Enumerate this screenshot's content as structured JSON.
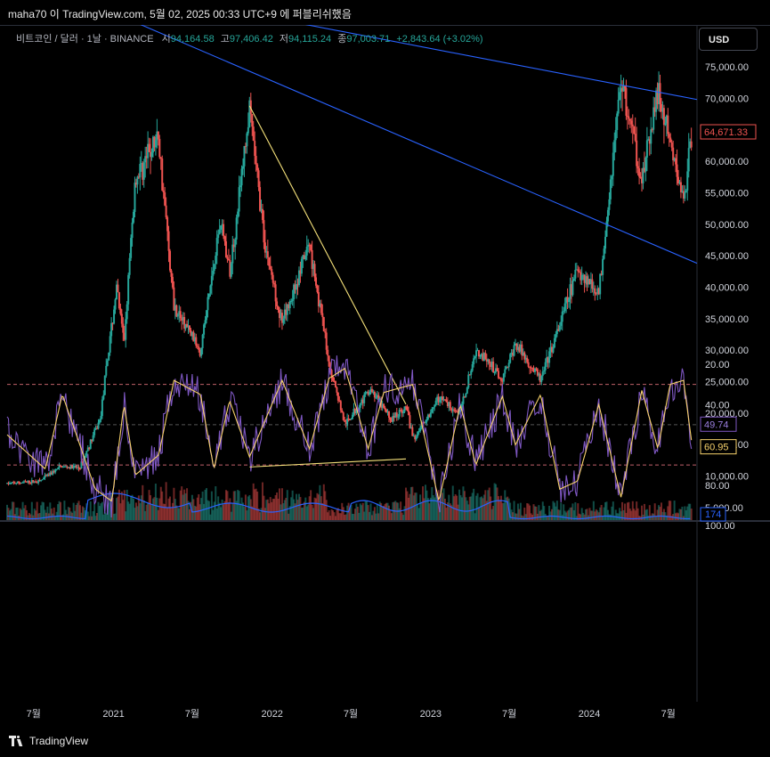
{
  "header": {
    "publish_text": "maha70 이 TradingView.com, 5월 02, 2025 00:33 UTC+9 에 퍼블리쉬했음"
  },
  "legend": {
    "symbol": "비트코인 / 달러 · 1날 · BINANCE",
    "open_label": "시",
    "open": "94,164.58",
    "high_label": "고",
    "high": "97,406.42",
    "low_label": "저",
    "low": "94,115.24",
    "close_label": "종",
    "close": "97,003.71",
    "change": "+2,843.64 (+3.02%)"
  },
  "currency_button": "USD",
  "footer": {
    "brand": "TradingView"
  },
  "colors": {
    "up": "#26a69a",
    "down": "#ef5350",
    "trend": "#2962ff",
    "fib_line": "#f5e17a",
    "rsi": "#7e57c2",
    "rsi_ma": "#f7d26b",
    "volume_ma": "#2962ff"
  },
  "chart_data": [
    {
      "type": "line",
      "title": "",
      "x_tick_labels": [
        "7월",
        "2021",
        "7월",
        "2022",
        "7월",
        "2023",
        "7월",
        "2024",
        "7월"
      ],
      "y_tick_labels": [
        "5,000.00",
        "10,000.00",
        "15,000.00",
        "20,000.00",
        "25,000.00",
        "30,000.00",
        "35,000.00",
        "40,000.00",
        "45,000.00",
        "50,000.00",
        "55,000.00",
        "60,000.00",
        "65,000.00",
        "70,000.00",
        "75,000.00"
      ],
      "ylim": [
        0,
        78000
      ],
      "current_price_label": "64,671.33",
      "volume_label": "174",
      "price_path": [
        [
          "2020-05-01",
          8800
        ],
        [
          "2020-07-15",
          9200
        ],
        [
          "2020-09-01",
          11500
        ],
        [
          "2020-10-15",
          11300
        ],
        [
          "2020-12-01",
          19000
        ],
        [
          "2021-01-08",
          40000
        ],
        [
          "2021-01-25",
          31000
        ],
        [
          "2021-02-20",
          57000
        ],
        [
          "2021-04-14",
          64000
        ],
        [
          "2021-05-20",
          37000
        ],
        [
          "2021-07-20",
          30000
        ],
        [
          "2021-09-05",
          51000
        ],
        [
          "2021-09-25",
          42000
        ],
        [
          "2021-11-10",
          68000
        ],
        [
          "2021-12-15",
          47000
        ],
        [
          "2022-01-24",
          34000
        ],
        [
          "2022-03-28",
          47000
        ],
        [
          "2022-05-12",
          28000
        ],
        [
          "2022-06-18",
          18000
        ],
        [
          "2022-08-15",
          24000
        ],
        [
          "2022-10-01",
          19000
        ],
        [
          "2022-11-05",
          21000
        ],
        [
          "2022-11-21",
          15800
        ],
        [
          "2023-01-20",
          22500
        ],
        [
          "2023-03-10",
          20000
        ],
        [
          "2023-04-15",
          30000
        ],
        [
          "2023-06-15",
          25500
        ],
        [
          "2023-07-15",
          31000
        ],
        [
          "2023-09-11",
          25200
        ],
        [
          "2023-10-25",
          34000
        ],
        [
          "2023-12-05",
          43000
        ],
        [
          "2024-01-23",
          39000
        ],
        [
          "2024-03-14",
          73000
        ],
        [
          "2024-05-01",
          57000
        ],
        [
          "2024-06-07",
          71000
        ],
        [
          "2024-08-05",
          53500
        ],
        [
          "2024-08-25",
          64671
        ]
      ],
      "trend_lines": [
        {
          "name": "upper-trendline",
          "from": [
            "2020-05-01",
            90800
          ],
          "to": [
            "2024-09-05",
            69800
          ]
        },
        {
          "name": "lower-trendline",
          "from": [
            "2020-05-01",
            90800
          ],
          "to": [
            "2024-09-05",
            43800
          ]
        },
        {
          "name": "fib-line",
          "from": [
            "2021-11-10",
            68800
          ],
          "to": [
            "2022-11-05",
            21400
          ]
        }
      ]
    },
    {
      "type": "line",
      "title": "",
      "y_tick_labels": [
        "20.00",
        "40.00",
        "60.00",
        "80.00",
        "100.00"
      ],
      "ylim": [
        13,
        100
      ],
      "band": [
        30,
        70
      ],
      "midline": 50,
      "rsi_label": "60.95",
      "rsi_ma_label": "49.74",
      "rsi_path": [
        [
          "2020-05-01",
          55
        ],
        [
          "2020-07-28",
          72
        ],
        [
          "2020-09-05",
          35
        ],
        [
          "2020-11-20",
          82
        ],
        [
          "2020-12-28",
          88
        ],
        [
          "2021-01-25",
          40
        ],
        [
          "2021-02-20",
          75
        ],
        [
          "2021-04-15",
          65
        ],
        [
          "2021-05-20",
          28
        ],
        [
          "2021-07-20",
          35
        ],
        [
          "2021-08-20",
          72
        ],
        [
          "2021-09-25",
          38
        ],
        [
          "2021-11-10",
          66
        ],
        [
          "2022-01-24",
          28
        ],
        [
          "2022-03-28",
          62
        ],
        [
          "2022-05-12",
          27
        ],
        [
          "2022-06-18",
          22
        ],
        [
          "2022-08-10",
          62
        ],
        [
          "2022-09-15",
          34
        ],
        [
          "2022-11-21",
          30
        ],
        [
          "2023-01-20",
          88
        ],
        [
          "2023-03-10",
          40
        ],
        [
          "2023-04-15",
          70
        ],
        [
          "2023-06-15",
          36
        ],
        [
          "2023-07-15",
          60
        ],
        [
          "2023-09-11",
          35
        ],
        [
          "2023-10-25",
          82
        ],
        [
          "2023-12-05",
          78
        ],
        [
          "2024-01-23",
          40
        ],
        [
          "2024-03-14",
          86
        ],
        [
          "2024-05-01",
          33
        ],
        [
          "2024-06-07",
          62
        ],
        [
          "2024-07-05",
          30
        ],
        [
          "2024-08-05",
          28
        ],
        [
          "2024-08-25",
          60.95
        ]
      ],
      "divergence_line": {
        "from": [
          "2021-11-10",
          71
        ],
        "to": [
          "2022-11-05",
          67
        ]
      }
    }
  ]
}
